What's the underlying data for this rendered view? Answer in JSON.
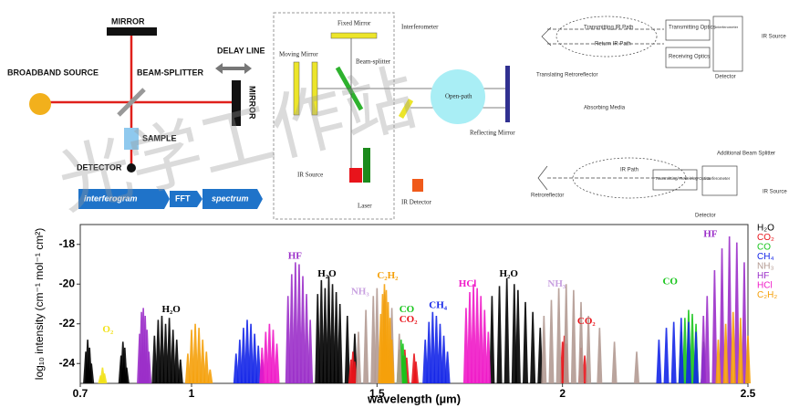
{
  "diagrams": {
    "michelson": {
      "top_mirror": "MIRROR",
      "source": "BROADBAND SOURCE",
      "beam_splitter": "BEAM-SPLITTER",
      "delay_line": "DELAY LINE",
      "right_mirror": "MIRROR",
      "sample": "SAMPLE",
      "detector": "DETECTOR",
      "interferogram": "interferogram",
      "fft": "FFT",
      "spectrum": "spectrum"
    },
    "ftir": {
      "fixed_mirror": "Fixed Mirror",
      "interferometer": "Interferometer",
      "moving_mirror": "Moving Mirror",
      "beam_splitter": "Beam-splitter",
      "open_path": "Open-path",
      "reflecting_mirror": "Reflecting Mirror",
      "ir_source": "IR Source",
      "laser": "Laser",
      "ir_detector": "IR Detector"
    },
    "open_path": {
      "transmitting_path": "Transmitting IR Path",
      "return_path": "Return IR Path",
      "transmitting_optics": "Transmitting Optics",
      "interferometer": "Interferometer",
      "receiving_optics": "Receiving Optics",
      "ir_source": "IR Source",
      "detector": "Detector",
      "translating_retroreflector": "Translating Retroreflector",
      "absorbing_media": "Absorbing Media",
      "additional_splitter": "Additional Beam Splitter",
      "ir_path": "IR Path",
      "tr_optics": "Transmitting/ Receiving Optics",
      "interferometer2": "Interferometer",
      "ir_source2": "IR Source",
      "retroreflector": "Retroreflector",
      "detector2": "Detector"
    },
    "watermark": "光学工作站"
  },
  "chart_data": {
    "type": "line-spectrum",
    "xlabel": "wavelength (µm)",
    "ylabel": "log₁₀ intensity (cm⁻¹ mol⁻¹ cm²)",
    "xlim": [
      0.7,
      2.5
    ],
    "xticks": [
      0.7,
      1,
      1.5,
      2,
      2.5
    ],
    "ylim": [
      -25,
      -17
    ],
    "yticks": [
      -18,
      -20,
      -22,
      -24
    ],
    "series": [
      {
        "name": "H₂O",
        "color": "#000000",
        "x": [
          0.715,
          0.72,
          0.725,
          0.73,
          0.81,
          0.815,
          0.82,
          0.825,
          0.9,
          0.91,
          0.92,
          0.93,
          0.94,
          0.95,
          0.96,
          0.97,
          1.34,
          1.35,
          1.36,
          1.37,
          1.38,
          1.39,
          1.4,
          1.42,
          1.44,
          1.81,
          1.83,
          1.85,
          1.87,
          1.88,
          1.9,
          1.92,
          1.94
        ],
        "values": [
          -23.4,
          -22.8,
          -23.2,
          -24,
          -23.6,
          -22.9,
          -23.2,
          -24.2,
          -22.6,
          -21.8,
          -21.6,
          -22,
          -21.7,
          -22.3,
          -22.8,
          -23.8,
          -20.5,
          -19.8,
          -20.2,
          -19.6,
          -20,
          -20.4,
          -21,
          -21.6,
          -22.5,
          -20.6,
          -20.1,
          -19.7,
          -20,
          -20.3,
          -20.9,
          -21.4,
          -22.2
        ]
      },
      {
        "name": "CO₂",
        "color": "#e8141b",
        "x": [
          1.43,
          1.435,
          1.44,
          1.57,
          1.575,
          1.58,
          1.6,
          1.605,
          2.0,
          2.005,
          2.01,
          2.05,
          2.06
        ],
        "values": [
          -23.8,
          -23.4,
          -23.9,
          -23.6,
          -23.3,
          -23.7,
          -23.5,
          -23.9,
          -22.9,
          -22.6,
          -23,
          -23.2,
          -23.6
        ]
      },
      {
        "name": "CO",
        "color": "#18c51c",
        "x": [
          1.56,
          1.565,
          1.57,
          1.575,
          2.32,
          2.33,
          2.34,
          2.35,
          2.36,
          2.38
        ],
        "values": [
          -23.3,
          -22.8,
          -23,
          -23.6,
          -22.4,
          -21.7,
          -21.3,
          -21.5,
          -22,
          -22.9
        ]
      },
      {
        "name": "CH₄",
        "color": "#1426e8",
        "x": [
          1.12,
          1.13,
          1.14,
          1.15,
          1.16,
          1.17,
          1.18,
          1.19,
          1.63,
          1.64,
          1.65,
          1.66,
          1.67,
          1.68,
          1.69,
          2.26,
          2.28,
          2.3,
          2.32,
          2.34,
          2.36,
          2.38
        ],
        "values": [
          -23.5,
          -22.8,
          -22.2,
          -21.8,
          -22,
          -22.5,
          -23.1,
          -23.8,
          -22.8,
          -21.9,
          -21.4,
          -21.6,
          -22,
          -22.6,
          -23.4,
          -22.8,
          -22.2,
          -21.9,
          -21.7,
          -21.9,
          -22.4,
          -23.2
        ]
      },
      {
        "name": "NH₃",
        "color": "#b39a92",
        "x": [
          1.45,
          1.47,
          1.49,
          1.5,
          1.52,
          1.54,
          1.56,
          1.95,
          1.97,
          1.99,
          2.01,
          2.03,
          2.05,
          2.07,
          2.1,
          2.14,
          2.2
        ],
        "values": [
          -22.4,
          -21.3,
          -20.6,
          -20.2,
          -20.4,
          -21.2,
          -22.5,
          -21.6,
          -20.8,
          -20.2,
          -20,
          -20.3,
          -20.9,
          -21.6,
          -22.2,
          -22.9,
          -23.4
        ]
      },
      {
        "name": "HF",
        "color": "#9b2fc9",
        "x": [
          0.86,
          0.865,
          0.87,
          0.875,
          0.88,
          0.885,
          1.26,
          1.27,
          1.28,
          1.29,
          1.3,
          1.31,
          1.32,
          2.38,
          2.39,
          2.41,
          2.43,
          2.45,
          2.47,
          2.49
        ],
        "values": [
          -22.5,
          -21.4,
          -21.2,
          -21.6,
          -22.3,
          -23.4,
          -20.6,
          -19.5,
          -18.9,
          -19,
          -19.6,
          -20.5,
          -21.8,
          -21.6,
          -20.6,
          -19.3,
          -18.2,
          -17.6,
          -17.9,
          -18.9
        ]
      },
      {
        "name": "HCl",
        "color": "#f019c8",
        "x": [
          1.19,
          1.2,
          1.21,
          1.22,
          1.23,
          1.74,
          1.75,
          1.76,
          1.77,
          1.78,
          1.79,
          1.8
        ],
        "values": [
          -23.2,
          -22.4,
          -22,
          -22.3,
          -23,
          -21.2,
          -20.4,
          -20,
          -20.2,
          -20.6,
          -21.3,
          -22.4
        ]
      },
      {
        "name": "C₂H₂",
        "color": "#f5a00a",
        "x": [
          0.99,
          1.0,
          1.01,
          1.02,
          1.03,
          1.04,
          1.05,
          1.51,
          1.515,
          1.52,
          1.525,
          1.53,
          1.535,
          1.54,
          2.42,
          2.44,
          2.46,
          2.48,
          2.5
        ],
        "values": [
          -23.5,
          -22.3,
          -22,
          -22.2,
          -22.8,
          -23.4,
          -24.3,
          -21.5,
          -20.5,
          -20,
          -20.3,
          -20.9,
          -21.7,
          -22.8,
          -22.8,
          -22,
          -21.4,
          -21.7,
          -22.6
        ]
      },
      {
        "name": "O₂",
        "color": "#f2e21a",
        "x": [
          0.755,
          0.76,
          0.765
        ],
        "values": [
          -24.6,
          -24.2,
          -24.5
        ]
      }
    ],
    "annotations": [
      {
        "text": "O₂",
        "x": 0.76,
        "y": -22.3,
        "color": "#f2e21a"
      },
      {
        "text": "H₂O",
        "x": 0.92,
        "y": -21.3,
        "color": "#000000"
      },
      {
        "text": "HF",
        "x": 1.26,
        "y": -18.6,
        "color": "#9b2fc9"
      },
      {
        "text": "H₂O",
        "x": 1.34,
        "y": -19.5,
        "color": "#000000"
      },
      {
        "text": "NH₃",
        "x": 1.43,
        "y": -20.4,
        "color": "#c8a0e0"
      },
      {
        "text": "C₂H₂",
        "x": 1.5,
        "y": -19.6,
        "color": "#f5a00a"
      },
      {
        "text": "CO",
        "x": 1.56,
        "y": -21.3,
        "color": "#18c51c"
      },
      {
        "text": "CO₂",
        "x": 1.56,
        "y": -21.8,
        "color": "#e8141b"
      },
      {
        "text": "CH₄",
        "x": 1.64,
        "y": -21.1,
        "color": "#1426e8"
      },
      {
        "text": "HCl",
        "x": 1.72,
        "y": -20.0,
        "color": "#f019c8"
      },
      {
        "text": "H₂O",
        "x": 1.83,
        "y": -19.5,
        "color": "#000000"
      },
      {
        "text": "NH₃",
        "x": 1.96,
        "y": -20.0,
        "color": "#c8a0e0"
      },
      {
        "text": "CO₂",
        "x": 2.04,
        "y": -21.9,
        "color": "#e8141b"
      },
      {
        "text": "CO",
        "x": 2.27,
        "y": -19.9,
        "color": "#18c51c"
      },
      {
        "text": "HF",
        "x": 2.38,
        "y": -17.5,
        "color": "#9b2fc9"
      }
    ]
  }
}
